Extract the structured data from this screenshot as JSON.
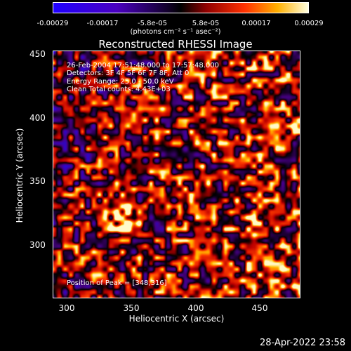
{
  "colorbar": {
    "ticks": [
      "-0.00029",
      "-0.00017",
      "-5.8e-05",
      "5.8e-05",
      "0.00017",
      "0.00029"
    ],
    "units": "(photons cm⁻² s⁻¹ asec⁻²)"
  },
  "plot": {
    "title": "Reconstructed RHESSI Image",
    "info_lines": [
      "26-Feb-2004 17:51:48.000 to 17:57:48.000",
      "Detectors: 3F 4F 5F 6F 7F 8F, Att 0",
      "Energy Range: 25.0 - 50.0 keV",
      "Clean     Total counts: 4.43E+03"
    ],
    "peak_label": "Position of Peak = [348,316]",
    "xlabel": "Heliocentric X (arcsec)",
    "ylabel": "Heliocentric Y (arcsec)",
    "xticks": [
      "300",
      "350",
      "400",
      "450"
    ],
    "yticks": [
      "450",
      "400",
      "350",
      "300"
    ]
  },
  "timestamp": "28-Apr-2022 23:58",
  "colors": {
    "cmap_low": "#1f00ff",
    "cmap_mid_low": "#1a0040",
    "cmap_mid": "#000000",
    "cmap_mid_high": "#ff3000",
    "cmap_high": "#ffffc8"
  }
}
